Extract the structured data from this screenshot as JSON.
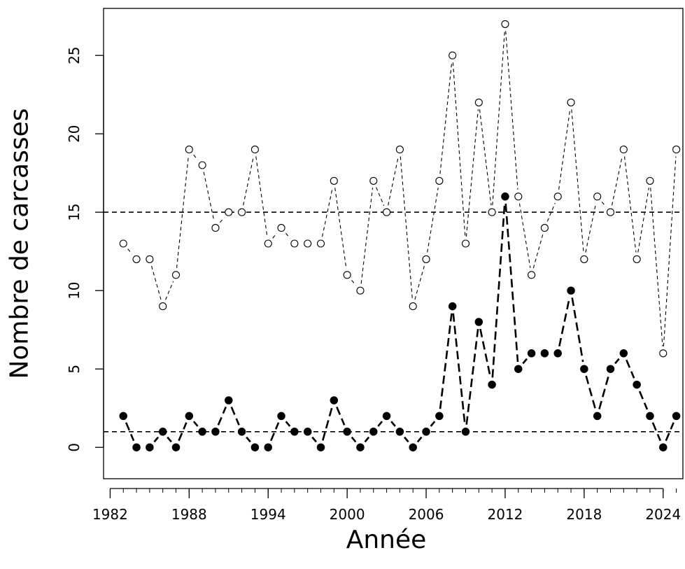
{
  "chart_data": {
    "type": "line",
    "title": "",
    "xlabel": "Année",
    "ylabel": "Nombre de carcasses",
    "xlim": [
      1981.5,
      2025.5
    ],
    "ylim": [
      -2,
      28
    ],
    "x_ticks": [
      1982,
      1988,
      1994,
      2000,
      2006,
      2012,
      2018,
      2024
    ],
    "y_ticks": [
      0,
      5,
      10,
      15,
      20,
      25
    ],
    "x": [
      1983,
      1984,
      1985,
      1986,
      1987,
      1988,
      1989,
      1990,
      1991,
      1992,
      1993,
      1994,
      1995,
      1996,
      1997,
      1998,
      1999,
      2000,
      2001,
      2002,
      2003,
      2004,
      2005,
      2006,
      2007,
      2008,
      2009,
      2010,
      2011,
      2012,
      2013,
      2014,
      2015,
      2016,
      2017,
      2018,
      2019,
      2020,
      2021,
      2022,
      2023,
      2024,
      2025
    ],
    "series": [
      {
        "marker": "open-circle",
        "line_style": "dashed-thin",
        "color": "#000000",
        "values": [
          13,
          12,
          12,
          9,
          11,
          19,
          18,
          14,
          15,
          15,
          19,
          13,
          14,
          13,
          13,
          13,
          17,
          11,
          10,
          17,
          15,
          19,
          9,
          12,
          17,
          25,
          13,
          22,
          15,
          27,
          16,
          11,
          14,
          16,
          22,
          12,
          16,
          15,
          19,
          12,
          17,
          6,
          19
        ]
      },
      {
        "marker": "filled-circle",
        "line_style": "dashed-thick",
        "color": "#000000",
        "values": [
          2,
          0,
          0,
          1,
          0,
          2,
          1,
          1,
          3,
          1,
          0,
          0,
          2,
          1,
          1,
          0,
          3,
          1,
          0,
          1,
          2,
          1,
          0,
          1,
          2,
          9,
          1,
          8,
          4,
          16,
          5,
          6,
          6,
          6,
          10,
          5,
          2,
          5,
          6,
          4,
          2,
          0,
          2
        ]
      }
    ],
    "reference_lines": [
      {
        "orientation": "horizontal",
        "y": 15,
        "style": "dashed"
      },
      {
        "orientation": "horizontal",
        "y": 1,
        "style": "dashed"
      }
    ],
    "grid": false,
    "legend": "none"
  }
}
